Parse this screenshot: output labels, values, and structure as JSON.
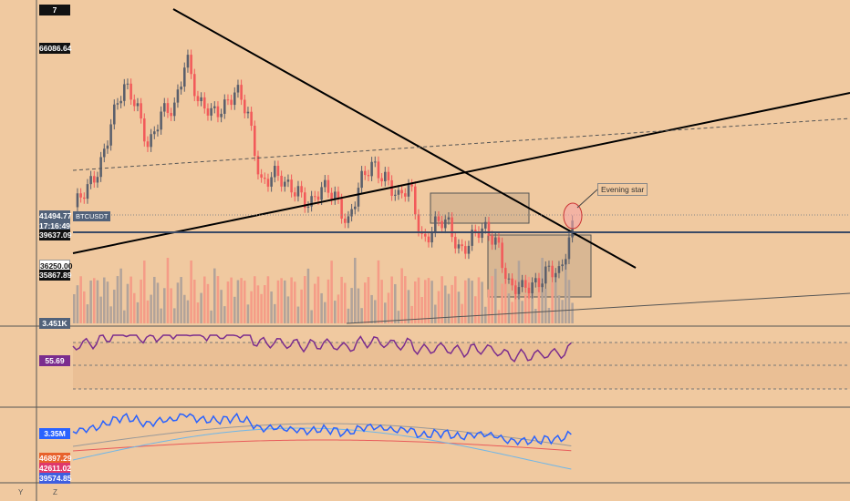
{
  "symbol": "BTCUSDT",
  "price_labels": {
    "top": "7",
    "p66086": "66086.64",
    "p41494": "41494.77",
    "countdown": "17:16:49",
    "p39637": "39637.09",
    "p36250": "36250.00",
    "p35867": "35867.89",
    "vol": "3.451K",
    "rsi": "55.69",
    "osc": "3.35M",
    "ma1": "46897.29",
    "ma2": "42611.02",
    "ma3": "39574.85"
  },
  "annotation": "Evening star",
  "bottom_bar": {
    "left": "Y",
    "mid": "Z"
  },
  "colors": {
    "background": "#f0c9a0",
    "up_candle": "#5a5f6c",
    "down_candle": "#f25a5a",
    "rsi_line": "#7b2d8e",
    "osc_line": "#2962ff",
    "ma_light": "#6fb6e8",
    "ma_red": "#e85a5a",
    "horizontal_level": "#3a4a66"
  },
  "chart_data": [
    {
      "type": "candlestick",
      "series": [
        {
          "name": "BTCUSDT",
          "close_points": [
            45600,
            47000,
            50500,
            56000,
            59000,
            58000,
            53000,
            56000,
            57000,
            64000,
            57000,
            56500,
            58000,
            59000,
            55800,
            49000,
            49500,
            47500,
            48000,
            46000,
            47300,
            47200,
            44000,
            48000,
            50800,
            49500,
            46000,
            48000,
            42000,
            43200,
            43500,
            41000,
            42000,
            42500,
            42000,
            36000,
            35500,
            37000,
            38600,
            37000,
            43500
          ]
        }
      ],
      "levels": [
        66086.64,
        41494.77,
        39637.09,
        36250.0,
        35867.89
      ],
      "annotations": [
        "Evening star"
      ]
    },
    {
      "type": "bar",
      "series": [
        {
          "name": "Volume",
          "last": "3.451K"
        }
      ]
    },
    {
      "type": "line",
      "series": [
        {
          "name": "RSI",
          "last": 55.69
        }
      ]
    },
    {
      "type": "line",
      "series": [
        {
          "name": "Oscillator",
          "last": "3.35M"
        },
        {
          "name": "MA",
          "last": 46897.29
        },
        {
          "name": "MA",
          "last": 42611.02
        },
        {
          "name": "MA",
          "last": 39574.85
        }
      ]
    }
  ]
}
